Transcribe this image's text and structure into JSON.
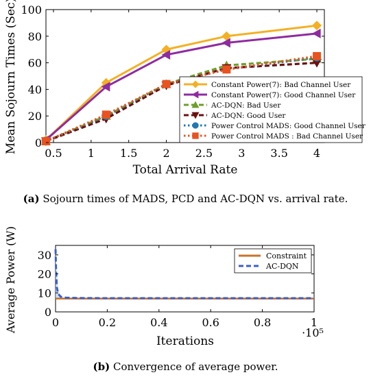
{
  "captions": {
    "a": {
      "label": "(a)",
      "label_letter": "a",
      "text": "Sojourn times of MADS, PCD and AC-DQN vs. arrival rate."
    },
    "b": {
      "label": "(b)",
      "label_letter": "b",
      "text": "Convergence of average power."
    }
  },
  "chart_data": [
    {
      "type": "line",
      "xlabel": "Total Arrival Rate",
      "ylabel": "Mean Sojourn Times (Sec)",
      "xlim": [
        0.4,
        4.1
      ],
      "ylim": [
        0,
        100
      ],
      "xticks": [
        "0.5",
        "1",
        "1.5",
        "2",
        "2.5",
        "3",
        "3.5",
        "4"
      ],
      "xtick_values": [
        0.5,
        1,
        1.5,
        2,
        2.5,
        3,
        3.5,
        4
      ],
      "yticks": [
        "0",
        "20",
        "40",
        "60",
        "80",
        "100"
      ],
      "ytick_values": [
        0,
        20,
        40,
        60,
        80,
        100
      ],
      "grid": false,
      "legend_position": "bottom-right",
      "x": [
        0.4,
        1.2,
        2.0,
        2.8,
        4.0
      ],
      "series": [
        {
          "name": "Constant Power(7): Bad Channel User",
          "values": [
            2,
            45,
            70,
            80,
            88
          ],
          "color": "#f4b023",
          "marker": "diamond",
          "dash": "solid"
        },
        {
          "name": "Constant Power(7): Good Channel User",
          "values": [
            2,
            42,
            66,
            75,
            82
          ],
          "color": "#8e2ba0",
          "marker": "triangle-left",
          "dash": "solid"
        },
        {
          "name": "AC-DQN: Bad User",
          "values": [
            1,
            20,
            44,
            58,
            63
          ],
          "color": "#6e9e2c",
          "marker": "triangle-up",
          "dash": "dashed"
        },
        {
          "name": "AC-DQN: Good User",
          "values": [
            1,
            18,
            43,
            56,
            60
          ],
          "color": "#6b1010",
          "marker": "triangle-down",
          "dash": "dashed"
        },
        {
          "name": "Power Control MADS: Good Channel User",
          "values": [
            1,
            20,
            44,
            55,
            64
          ],
          "color": "#1f77b4",
          "marker": "circle",
          "dash": "dotted"
        },
        {
          "name": "Power Control MADS : Bad Channel User",
          "values": [
            1,
            21,
            44,
            55,
            65
          ],
          "color": "#e8531f",
          "marker": "square",
          "dash": "dotted"
        }
      ]
    },
    {
      "type": "line",
      "xlabel": "Iterations",
      "ylabel": "Average Power (W)",
      "x_multiplier": "·10⁵",
      "xlim": [
        0,
        1
      ],
      "ylim": [
        0,
        35
      ],
      "xticks": [
        "0",
        "0.2",
        "0.4",
        "0.6",
        "0.8",
        "1"
      ],
      "xtick_values": [
        0,
        0.2,
        0.4,
        0.6,
        0.8,
        1
      ],
      "yticks": [
        "0",
        "10",
        "20",
        "30"
      ],
      "ytick_values": [
        0,
        10,
        20,
        30
      ],
      "grid": false,
      "legend_position": "top-right",
      "series": [
        {
          "name": "Constraint",
          "color": "#c8732a",
          "dash": "solid",
          "x": [
            0,
            1
          ],
          "values": [
            7,
            7
          ]
        },
        {
          "name": "AC-DQN",
          "color": "#3a5fcd",
          "dash": "dashed",
          "x": [
            0,
            0.002,
            0.005,
            0.01,
            0.02,
            0.04,
            0.08,
            0.2,
            1
          ],
          "values": [
            33,
            22,
            13,
            9.5,
            8,
            7.5,
            7.3,
            7.2,
            7.2
          ]
        }
      ]
    }
  ]
}
